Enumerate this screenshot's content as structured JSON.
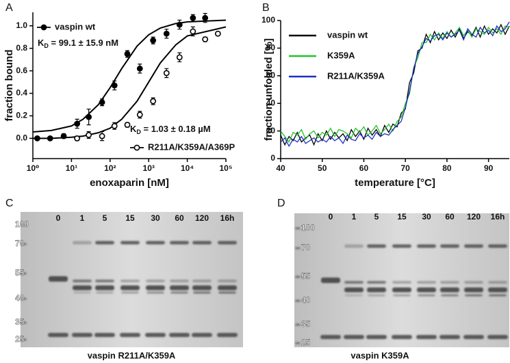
{
  "chart_data": [
    {
      "type": "scatter",
      "panel": "A",
      "xlabel": "enoxaparin [nM]",
      "ylabel": "fraction bound",
      "log_x": true,
      "xlim": [
        1,
        100000
      ],
      "xticks": [
        {
          "value": 1,
          "label": "10⁰"
        },
        {
          "value": 10,
          "label": "10¹"
        },
        {
          "value": 100,
          "label": "10²"
        },
        {
          "value": 1000,
          "label": "10³"
        },
        {
          "value": 10000,
          "label": "10⁴"
        },
        {
          "value": 100000,
          "label": "10⁵"
        }
      ],
      "ylim": [
        -0.18,
        1.12
      ],
      "yticks": [
        {
          "value": 0,
          "label": "0.0"
        },
        {
          "value": 0.2,
          "label": "0.2"
        },
        {
          "value": 0.4,
          "label": "0.4"
        },
        {
          "value": 0.6,
          "label": "0.6"
        },
        {
          "value": 0.8,
          "label": "0.8"
        },
        {
          "value": 1,
          "label": "1.0"
        }
      ],
      "series": [
        {
          "name": "vaspin wt",
          "color": "#000000",
          "marker": "filled",
          "x": [
            1.3,
            2.8,
            6.3,
            14,
            28,
            62,
            130,
            280,
            590,
            1300,
            2900,
            6300,
            14000,
            29000
          ],
          "values": [
            0.0,
            0.0,
            0.02,
            0.13,
            0.19,
            0.32,
            0.47,
            0.75,
            0.62,
            0.87,
            0.93,
            1.01,
            1.07,
            1.07
          ],
          "errors": [
            0.01,
            0.01,
            0.02,
            0.04,
            0.07,
            0.03,
            0.04,
            0.03,
            0.04,
            0.03,
            0.04,
            0.04,
            0.03,
            0.04
          ],
          "fit_x": [
            1,
            3,
            10,
            20,
            50,
            100,
            200,
            500,
            1000,
            2000,
            5000,
            10000,
            100000
          ],
          "fit_values": [
            0.057,
            0.07,
            0.11,
            0.17,
            0.3,
            0.45,
            0.62,
            0.82,
            0.92,
            0.98,
            1.02,
            1.035,
            1.05
          ]
        },
        {
          "name": "R211A/K359A/A369P",
          "color": "#000000",
          "marker": "open",
          "x": [
            14,
            28,
            62,
            130,
            280,
            590,
            1300,
            2900,
            6300,
            14000,
            29000,
            62000
          ],
          "values": [
            0.0,
            0.03,
            0.02,
            0.11,
            0.12,
            0.21,
            0.33,
            0.58,
            0.72,
            0.95,
            0.88,
            0.93
          ],
          "errors": [
            0.02,
            0.03,
            0.04,
            0.03,
            0.02,
            0.03,
            0.03,
            0.04,
            0.04,
            0.04,
            0.02,
            0.01
          ],
          "fit_x": [
            1,
            3,
            10,
            20,
            50,
            100,
            200,
            500,
            1000,
            2000,
            5000,
            10000,
            100000
          ],
          "fit_values": [
            0.0,
            0.0,
            0.01,
            0.02,
            0.05,
            0.09,
            0.17,
            0.33,
            0.5,
            0.67,
            0.83,
            0.91,
            0.99
          ]
        }
      ],
      "annotations": [
        {
          "main": "K",
          "sub": "D",
          "rest": " = 99.1 ± 15.9 nM"
        },
        {
          "main": "K",
          "sub": "D",
          "rest": " = 1.03 ± 0.18 µM"
        }
      ]
    },
    {
      "type": "line",
      "panel": "B",
      "xlabel": "temperature [°C]",
      "ylabel": "fraction unfolded [%]",
      "x": [
        40,
        41,
        42,
        43,
        44,
        45,
        46,
        47,
        48,
        49,
        50,
        51,
        52,
        53,
        54,
        55,
        56,
        57,
        58,
        59,
        60,
        61,
        62,
        63,
        64,
        65,
        66,
        67,
        68,
        69,
        70,
        71,
        72,
        73,
        74,
        75,
        76,
        77,
        78,
        79,
        80,
        81,
        82,
        83,
        84,
        85,
        86,
        87,
        88,
        89,
        90,
        91,
        92,
        93,
        94,
        95
      ],
      "xlim": [
        40,
        95
      ],
      "xticks": [
        40,
        50,
        60,
        70,
        80,
        90
      ],
      "ylim": [
        0,
        100
      ],
      "yticks": [
        0,
        20,
        40,
        60,
        80,
        100
      ],
      "series": [
        {
          "name": "vaspin wt",
          "color": "#000000",
          "values": [
            17,
            10,
            16,
            13,
            19,
            12,
            15,
            17,
            10,
            18,
            13,
            20,
            14,
            19,
            15,
            18,
            13,
            21,
            16,
            20,
            14,
            22,
            17,
            21,
            16,
            24,
            19,
            25,
            23,
            33,
            36,
            55,
            62,
            78,
            80,
            90,
            84,
            92,
            86,
            91,
            87,
            93,
            88,
            94,
            87,
            92,
            89,
            95,
            88,
            96,
            90,
            94,
            91,
            97,
            90,
            96
          ]
        },
        {
          "name": "K359A",
          "color": "#22c32a",
          "values": [
            20,
            16,
            12,
            19,
            17,
            21,
            14,
            18,
            20,
            15,
            19,
            17,
            22,
            16,
            21,
            20,
            18,
            15,
            22,
            19,
            23,
            17,
            20,
            24,
            18,
            21,
            25,
            20,
            27,
            30,
            40,
            47,
            66,
            73,
            84,
            84,
            90,
            86,
            91,
            87,
            92,
            88,
            91,
            95,
            89,
            93,
            88,
            94,
            92,
            90,
            95,
            91,
            94,
            90,
            96,
            95
          ]
        },
        {
          "name": "R211A/K359A",
          "color": "#1a2fc0",
          "values": [
            12,
            15,
            9,
            14,
            12,
            16,
            11,
            13,
            15,
            12,
            14,
            12,
            16,
            13,
            15,
            11,
            17,
            14,
            13,
            18,
            15,
            17,
            14,
            19,
            16,
            18,
            17,
            21,
            24,
            27,
            37,
            49,
            65,
            76,
            81,
            87,
            85,
            89,
            90,
            86,
            91,
            88,
            90,
            93,
            86,
            94,
            90,
            88,
            95,
            91,
            93,
            89,
            96,
            92,
            94,
            99
          ]
        }
      ]
    }
  ],
  "gels": [
    {
      "panel": "C",
      "lanes": [
        "0",
        "1",
        "5",
        "15",
        "30",
        "60",
        "120",
        "16h"
      ],
      "markers": [
        100,
        70,
        55,
        40,
        35,
        25
      ],
      "caption": "vaspin R211A/K359A"
    },
    {
      "panel": "D",
      "lanes": [
        "0",
        "1",
        "5",
        "15",
        "30",
        "60",
        "120",
        "16h"
      ],
      "markers": [
        100,
        70,
        55,
        40,
        35,
        25
      ],
      "caption": "vaspin K359A"
    }
  ]
}
